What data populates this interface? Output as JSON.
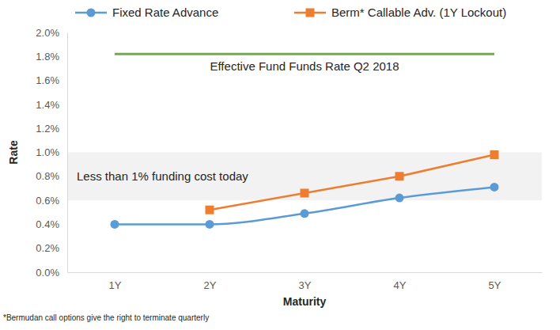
{
  "chart_data": {
    "type": "line",
    "x_label": "Maturity",
    "y_label": "Rate",
    "categories": [
      "1Y",
      "2Y",
      "3Y",
      "4Y",
      "5Y"
    ],
    "series": [
      {
        "name": "Fixed Rate Advance",
        "color": "#5b9bd5",
        "marker": "circle",
        "line_style": "smooth",
        "values": [
          0.4,
          0.4,
          0.49,
          0.62,
          0.71
        ]
      },
      {
        "name": "Berm* Callable Adv. (1Y Lockout)",
        "color": "#ed7d31",
        "marker": "square",
        "line_style": "solid",
        "values": [
          null,
          0.52,
          0.66,
          0.8,
          0.98
        ]
      }
    ],
    "reference_line": {
      "value": 1.82,
      "label": "Effective Fund Funds Rate Q2 2018",
      "color": "#70ad47"
    },
    "band": {
      "range": [
        0.6,
        1.0
      ],
      "label": "Less than 1% funding cost today"
    },
    "footnote": "*Bermudan call options give the right to terminate quarterly",
    "ylim": [
      0,
      2.0
    ],
    "yticks": [
      {
        "value": 0,
        "label": "0.0%"
      },
      {
        "value": 0.2,
        "label": "0.2%"
      },
      {
        "value": 0.4,
        "label": "0.4%"
      },
      {
        "value": 0.6,
        "label": "0.6%"
      },
      {
        "value": 0.8,
        "label": "0.8%"
      },
      {
        "value": 1.0,
        "label": "1.0%"
      },
      {
        "value": 1.2,
        "label": "1.2%"
      },
      {
        "value": 1.4,
        "label": "1.4%"
      },
      {
        "value": 1.6,
        "label": "1.6%"
      },
      {
        "value": 1.8,
        "label": "1.8%"
      },
      {
        "value": 2.0,
        "label": "2.0%"
      }
    ],
    "grid": false,
    "legend": "top"
  }
}
